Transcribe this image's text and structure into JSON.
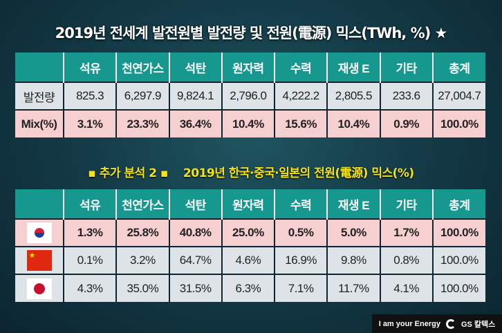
{
  "title": "2019년 전세계 발전원별 발전량 및 전원(電源) 믹스(TWh, %) ★",
  "subtitle": {
    "left": "▪ 추가 분석 2 ▪",
    "right": "2019년 한국·중국·일본의 전원(電源) 믹스(%)"
  },
  "columns": [
    "석유",
    "천연가스",
    "석탄",
    "원자력",
    "수력",
    "재생 E",
    "기타",
    "총계"
  ],
  "table1": {
    "rows": [
      {
        "label": "발전량",
        "values": [
          "825.3",
          "6,297.9",
          "9,824.1",
          "2,796.0",
          "4,222.2",
          "2,805.5",
          "233.6",
          "27,004.7"
        ]
      },
      {
        "label": "Mix(%)",
        "values": [
          "3.1%",
          "23.3%",
          "36.4%",
          "10.4%",
          "15.6%",
          "10.4%",
          "0.9%",
          "100.0%"
        ]
      }
    ]
  },
  "table2": {
    "rows": [
      {
        "flag": "south-korea-flag",
        "values": [
          "1.3%",
          "25.8%",
          "40.8%",
          "25.0%",
          "0.5%",
          "5.0%",
          "1.7%",
          "100.0%"
        ]
      },
      {
        "flag": "china-flag",
        "values": [
          "0.1%",
          "3.2%",
          "64.7%",
          "4.6%",
          "16.9%",
          "9.8%",
          "0.8%",
          "100.0%"
        ]
      },
      {
        "flag": "japan-flag",
        "values": [
          "4.3%",
          "35.0%",
          "31.5%",
          "6.3%",
          "7.1%",
          "11.7%",
          "4.1%",
          "100.0%"
        ]
      }
    ]
  },
  "footer": {
    "slogan": "I am your Energy",
    "brand": "GS 칼텍스"
  },
  "colors": {
    "header": "#16988f",
    "highlight": "#f6cfd0",
    "row": "#dde3e6",
    "subtitle": "#f4e21a"
  }
}
